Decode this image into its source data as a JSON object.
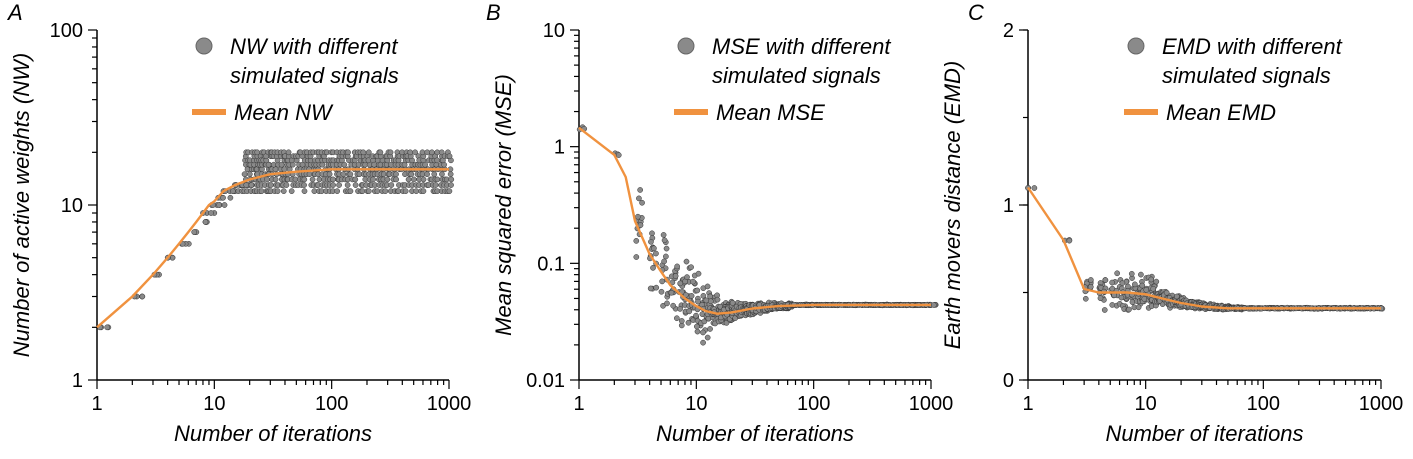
{
  "colors": {
    "points": "#8a8a8a",
    "mean_line": "#f0923f",
    "axis": "#000000"
  },
  "chart_data": [
    {
      "type": "scatter",
      "panel_label": "A",
      "xlabel": "Number of iterations",
      "ylabel": "Number of active weights (NW)",
      "xscale": "log",
      "yscale": "log",
      "xlim": [
        1,
        1000
      ],
      "ylim": [
        1,
        100
      ],
      "xticks": [
        1,
        10,
        100,
        1000
      ],
      "xtick_labels": [
        "1",
        "10",
        "100",
        "1000"
      ],
      "yticks": [
        1,
        10,
        100
      ],
      "ytick_labels": [
        "1",
        "10",
        "100"
      ],
      "legend_position": "top-right",
      "legend": {
        "scatter": [
          "NW with different",
          "simulated signals"
        ],
        "line": "Mean NW"
      },
      "mean": {
        "x": [
          1,
          2,
          3,
          4,
          5,
          6,
          7,
          8,
          9,
          10,
          12,
          15,
          20,
          30,
          50,
          100,
          300,
          1000
        ],
        "y": [
          2,
          3,
          4,
          5,
          6,
          7,
          8,
          9,
          10,
          10.5,
          12,
          13,
          14,
          15,
          15.5,
          16,
          16,
          16
        ]
      },
      "spread": {
        "x_start": 1,
        "n_max": 20,
        "n_min": 12,
        "saturation_x": 18
      }
    },
    {
      "type": "scatter",
      "panel_label": "B",
      "xlabel": "Number of iterations",
      "ylabel": "Mean squared error (MSE)",
      "xscale": "log",
      "yscale": "log",
      "xlim": [
        1,
        1000
      ],
      "ylim": [
        0.01,
        10
      ],
      "xticks": [
        1,
        10,
        100,
        1000
      ],
      "xtick_labels": [
        "1",
        "10",
        "100",
        "1000"
      ],
      "yticks": [
        0.01,
        0.1,
        1,
        10
      ],
      "ytick_labels": [
        "0.01",
        "0.1",
        "1",
        "10"
      ],
      "legend_position": "top-right",
      "legend": {
        "scatter": [
          "MSE with different",
          "simulated signals"
        ],
        "line": "Mean MSE"
      },
      "mean": {
        "x": [
          1,
          2,
          2.5,
          3,
          4,
          5,
          6,
          8,
          10,
          12,
          15,
          20,
          30,
          50,
          100,
          300,
          1000
        ],
        "y": [
          1.45,
          0.85,
          0.55,
          0.23,
          0.12,
          0.085,
          0.065,
          0.05,
          0.043,
          0.039,
          0.037,
          0.038,
          0.041,
          0.043,
          0.044,
          0.044,
          0.044
        ]
      },
      "converged_value": 0.044
    },
    {
      "type": "scatter",
      "panel_label": "C",
      "xlabel": "Number of iterations",
      "ylabel": "Earth movers distance (EMD)",
      "xscale": "log",
      "yscale": "linear",
      "xlim": [
        1,
        1000
      ],
      "ylim": [
        0,
        2
      ],
      "xticks": [
        1,
        10,
        100,
        1000
      ],
      "xtick_labels": [
        "1",
        "10",
        "100",
        "1000"
      ],
      "yticks": [
        0,
        1,
        2
      ],
      "ytick_labels": [
        "0",
        "1",
        "2"
      ],
      "legend_position": "top-right",
      "legend": {
        "scatter": [
          "EMD with different",
          "simulated signals"
        ],
        "line": "Mean EMD"
      },
      "mean": {
        "x": [
          1,
          2,
          3,
          4,
          5,
          7,
          10,
          15,
          20,
          30,
          50,
          100,
          300,
          1000
        ],
        "y": [
          1.1,
          0.8,
          0.52,
          0.5,
          0.5,
          0.5,
          0.49,
          0.46,
          0.44,
          0.42,
          0.41,
          0.41,
          0.41,
          0.41
        ]
      },
      "converged_value": 0.41
    }
  ]
}
